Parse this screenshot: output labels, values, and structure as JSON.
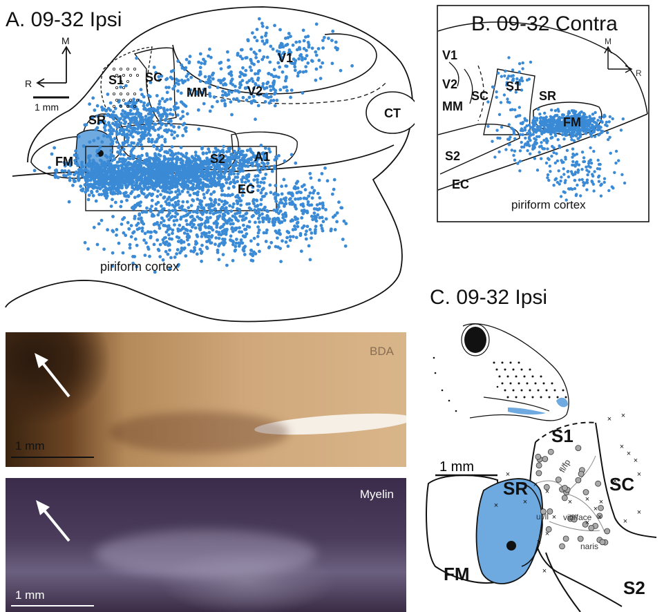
{
  "panelA": {
    "title": "A. 09-32 Ipsi",
    "orient_m": "M",
    "orient_r": "R",
    "scale": "1 mm",
    "regions": {
      "v1": "V1",
      "v2": "V2",
      "s1": "S1",
      "sc": "SC",
      "mm": "MM",
      "ct": "CT",
      "sr": "SR",
      "fm": "FM",
      "s2": "S2",
      "a1": "A1",
      "ec": "EC"
    },
    "piriform": "piriform cortex"
  },
  "panelB": {
    "title": "B. 09-32 Contra",
    "orient_m": "M",
    "orient_r": "R",
    "regions": {
      "v1": "V1",
      "v2": "V2",
      "mm": "MM",
      "sc": "SC",
      "s1": "S1",
      "sr": "SR",
      "fm": "FM",
      "s2": "S2",
      "ec": "EC"
    },
    "piriform": "piriform cortex"
  },
  "panelC": {
    "title": "C. 09-32 Ipsi",
    "scale": "1 mm",
    "regions": {
      "s1": "S1",
      "sr": "SR",
      "sc": "SC",
      "fm": "FM",
      "s2": "S2"
    },
    "subregions": {
      "flfp": "fl/fp",
      "ulll": "ul/ll",
      "vibface": "vib/face",
      "naris": "naris"
    }
  },
  "photos": {
    "bda": {
      "label": "BDA",
      "scale": "1 mm"
    },
    "myelin": {
      "label": "Myelin",
      "scale": "1 mm"
    }
  },
  "colors": {
    "label_blue": "#3a8ad6",
    "fill_blue": "#6ea9df",
    "bda_brown": "#b58a5a",
    "myelin_purple": "#3a2c4a"
  }
}
